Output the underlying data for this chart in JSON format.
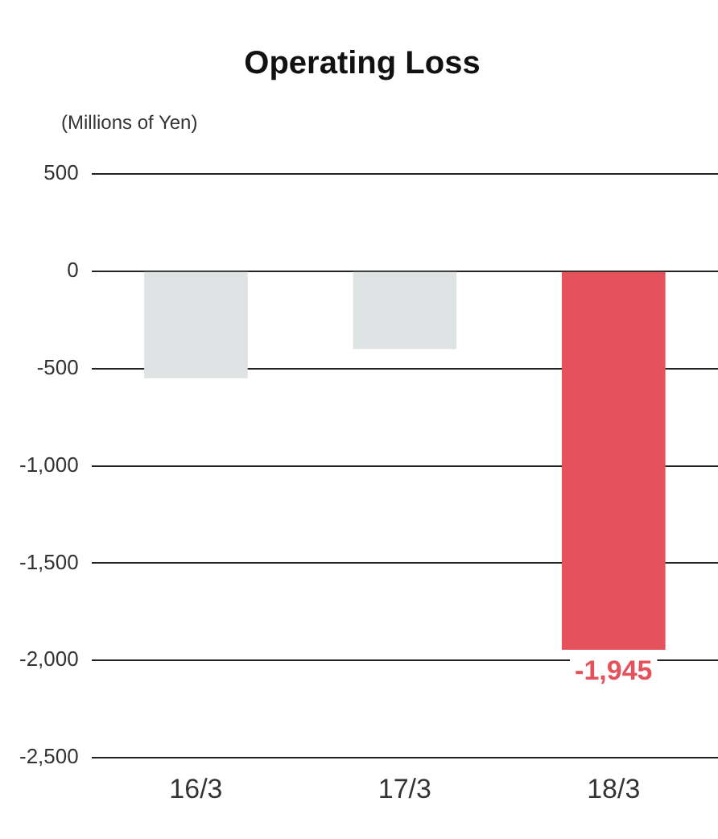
{
  "chart_data": {
    "type": "bar",
    "title": "Operating Loss",
    "ylabel": "(Millions of Yen)",
    "categories": [
      "16/3",
      "17/3",
      "18/3"
    ],
    "values": [
      -550,
      -400,
      -1945
    ],
    "colors": [
      "#dfe3e3",
      "#dfe3e3",
      "#e5525c"
    ],
    "value_labels": [
      null,
      null,
      "-1,945"
    ],
    "ylim": [
      -2500,
      500
    ],
    "yticks": [
      500,
      0,
      {
        "value": -500,
        "label": "-500"
      },
      {
        "value": -1000,
        "label": "-1,000"
      },
      {
        "value": -1500,
        "label": "-1,500"
      },
      {
        "value": -2000,
        "label": "-2,000"
      },
      {
        "value": -2500,
        "label": "-2,500"
      }
    ],
    "grid": "y",
    "legend": false
  }
}
